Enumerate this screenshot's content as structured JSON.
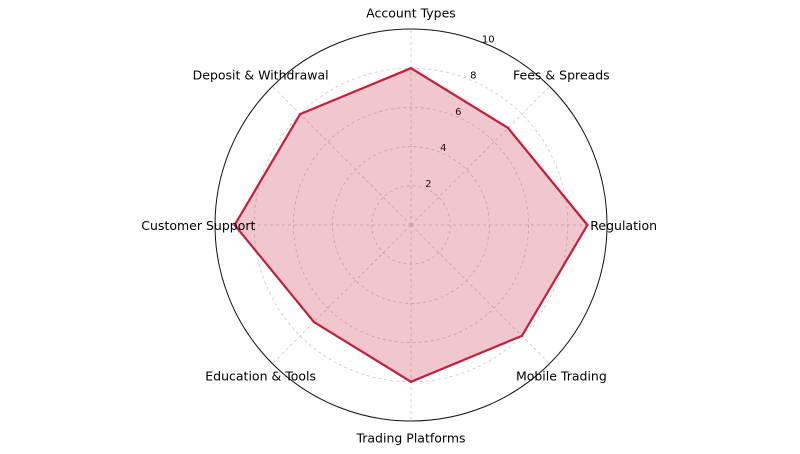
{
  "chart_data": {
    "type": "radar",
    "categories": [
      "Account Types",
      "Fees & Spreads",
      "Regulation",
      "Mobile Trading",
      "Trading Platforms",
      "Education & Tools",
      "Customer Support",
      "Deposit & Withdrawal"
    ],
    "values": [
      8,
      7,
      9,
      8,
      8,
      7,
      9,
      8
    ],
    "rlim": [
      0,
      10
    ],
    "r_ticks": [
      "2",
      "4",
      "6",
      "8",
      "10"
    ],
    "grid": true,
    "colors": {
      "line": "#c41e3a",
      "fill": "#c41e3a",
      "fill_opacity": 0.25
    }
  }
}
